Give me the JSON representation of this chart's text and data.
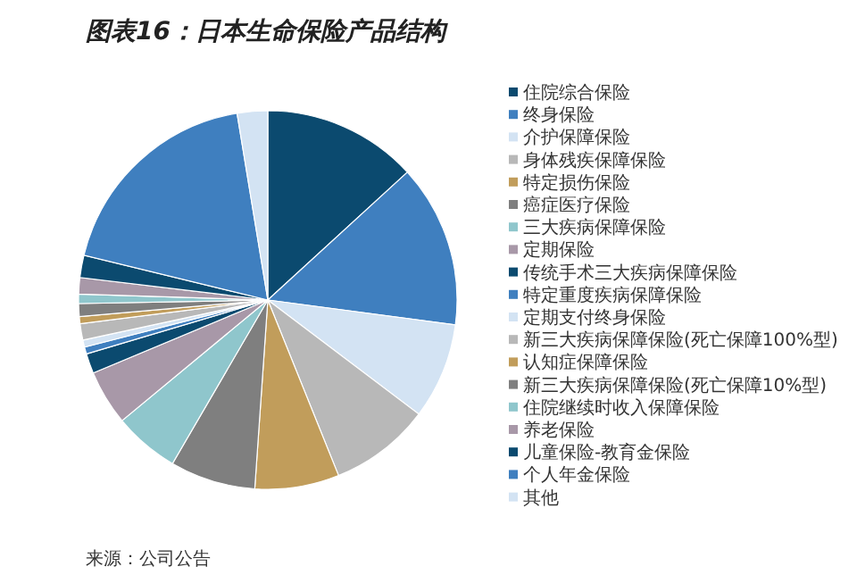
{
  "chart_data": {
    "type": "pie",
    "title": "图表16：日本生命保险产品结构",
    "categories": [
      "住院综合保险",
      "终身保险",
      "介护保障保险",
      "身体残疾保障保险",
      "特定损伤保险",
      "癌症医疗保险",
      "三大疾病保障保险",
      "定期保险",
      "传统手术三大疾病保障保险",
      "特定重度疾病保障保险",
      "定期支付终身保险",
      "新三大疾病保障保险(死亡保障100%型)",
      "认知症保障保险",
      "新三大疾病保障保险(死亡保障10%型)",
      "住院继续时收入保障保险",
      "养老保险",
      "儿童保险-教育金保险",
      "个人年金保险",
      "其他"
    ],
    "values": [
      13.2,
      13.9,
      8.2,
      8.6,
      7.2,
      7.3,
      5.6,
      4.7,
      1.7,
      0.6,
      0.6,
      1.4,
      0.6,
      1.1,
      0.8,
      1.4,
      1.9,
      18.6,
      2.6
    ],
    "colors": [
      "#0b4a6f",
      "#3f7fbf",
      "#d3e3f3",
      "#b8b8b8",
      "#c19d5b",
      "#7f7f7f",
      "#8fc6cc",
      "#a898a8",
      "#0b4a6f",
      "#3f7fbf",
      "#d3e3f3",
      "#b8b8b8",
      "#c19d5b",
      "#7f7f7f",
      "#8fc6cc",
      "#a898a8",
      "#0b4a6f",
      "#3f7fbf",
      "#d3e3f3"
    ],
    "legend": "right",
    "annotations": [
      "来源：公司公告"
    ]
  }
}
